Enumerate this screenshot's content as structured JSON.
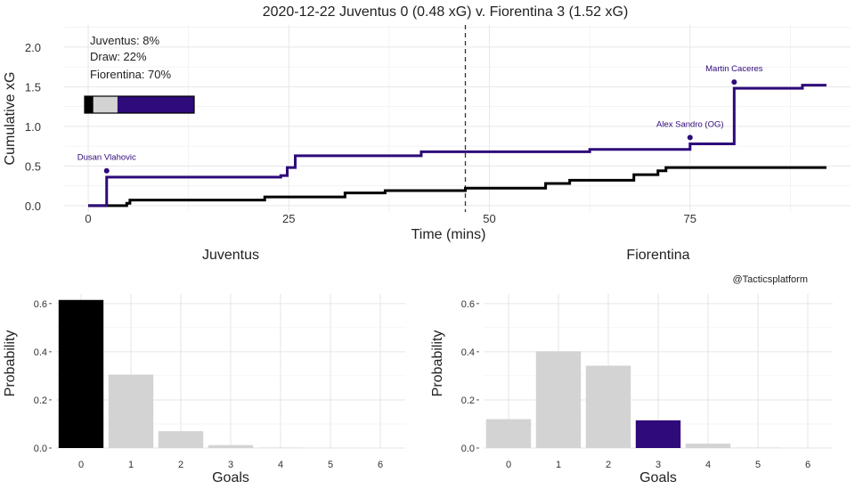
{
  "title": "2020-12-22 Juventus 0 (0.48 xG) v. Fiorentina 3 (1.52 xG)",
  "credit": "@Tacticsplatform",
  "colors": {
    "home": "#000000",
    "away": "#2e0a7a",
    "draw": "#d3d3d3",
    "grid": "#e6e6e6",
    "halftime": "#333333"
  },
  "outcome_box": {
    "lines": [
      "Juventus: 8%",
      "Draw: 22%",
      "Fiorentina: 70%"
    ],
    "probabilities": [
      0.08,
      0.22,
      0.7
    ]
  },
  "chart_data": [
    {
      "type": "line",
      "title": "",
      "xlabel": "Time (mins)",
      "ylabel": "Cumulative xG",
      "xlim": [
        -3,
        95
      ],
      "ylim": [
        -0.08,
        2.28
      ],
      "xticks": [
        0,
        25,
        50,
        75
      ],
      "yticks": [
        0.0,
        0.5,
        1.0,
        1.5,
        2.0
      ],
      "ytick_labels": [
        "0.0",
        "0.5",
        "1.0",
        "1.5",
        "2.0"
      ],
      "halftime_line": 47,
      "series": [
        {
          "name": "Juventus",
          "x": [
            0,
            2.3,
            4.8,
            5.2,
            22,
            32,
            37,
            47,
            57,
            60,
            68,
            71,
            72,
            92
          ],
          "y": [
            0.0,
            0.0,
            0.03,
            0.07,
            0.11,
            0.16,
            0.19,
            0.22,
            0.28,
            0.32,
            0.39,
            0.44,
            0.48,
            0.48
          ]
        },
        {
          "name": "Fiorentina",
          "x": [
            0,
            2.3,
            24,
            24.8,
            25.8,
            41.5,
            62.5,
            75,
            80.5,
            89,
            92
          ],
          "y": [
            0.0,
            0.36,
            0.38,
            0.48,
            0.63,
            0.68,
            0.71,
            0.78,
            1.48,
            1.52,
            1.52
          ]
        }
      ],
      "annotations": [
        {
          "label": "Dusan Vlahovic",
          "x": 2.3,
          "y": 0.44
        },
        {
          "label": "Alex Sandro (OG)",
          "x": 75,
          "y": 0.86
        },
        {
          "label": "Martin Caceres",
          "x": 80.5,
          "y": 1.56
        }
      ]
    },
    {
      "type": "bar",
      "title": "Juventus",
      "xlabel": "Goals",
      "ylabel": "Probability",
      "categories": [
        "0",
        "1",
        "2",
        "3",
        "4",
        "5",
        "6"
      ],
      "values": [
        0.615,
        0.305,
        0.07,
        0.012,
        0.002,
        0.0005,
        0.0
      ],
      "ylim": [
        0,
        0.64
      ],
      "yticks": [
        0.0,
        0.2,
        0.4,
        0.6
      ],
      "ytick_labels": [
        "0.0",
        "0.2",
        "0.4",
        "0.6"
      ],
      "highlight_index": 0
    },
    {
      "type": "bar",
      "title": "Fiorentina",
      "xlabel": "Goals",
      "ylabel": "Probability",
      "categories": [
        "0",
        "1",
        "2",
        "3",
        "4",
        "5",
        "6"
      ],
      "values": [
        0.12,
        0.402,
        0.342,
        0.115,
        0.018,
        0.002,
        0.0005
      ],
      "ylim": [
        0,
        0.64
      ],
      "yticks": [
        0.0,
        0.2,
        0.4,
        0.6
      ],
      "ytick_labels": [
        "0.0",
        "0.2",
        "0.4",
        "0.6"
      ],
      "highlight_index": 3
    }
  ]
}
